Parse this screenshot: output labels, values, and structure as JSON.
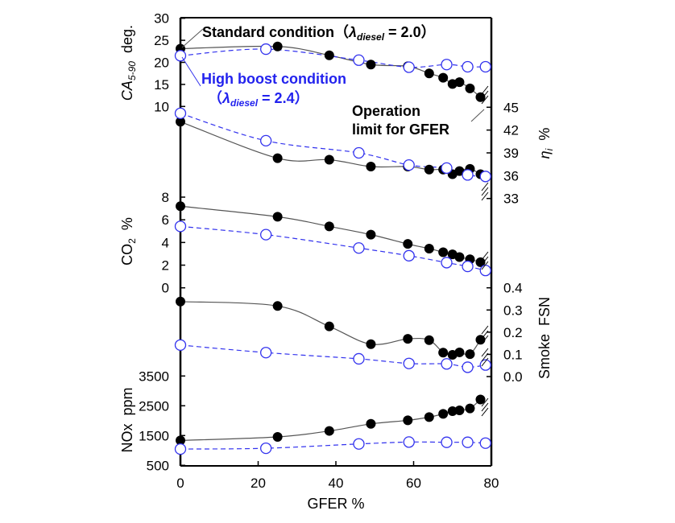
{
  "chart_data": {
    "type": "line",
    "xlabel": "GFER  %",
    "xlim": [
      0,
      80
    ],
    "xticks": [
      "0",
      "20",
      "40",
      "60",
      "80"
    ],
    "colors": {
      "standard": "#000000",
      "high_boost": "#3333ee",
      "standard_line": "#555555"
    },
    "legend": {
      "standard": {
        "text": "Standard condition（",
        "lambda": "λ",
        "sub": "diesel",
        "tail": " = 2.0）"
      },
      "high_boost": {
        "line1": "High boost condition",
        "open": "（",
        "lambda": "λ",
        "sub": "diesel",
        "tail": " = 2.4）"
      },
      "operation_limit": [
        "Operation",
        "limit for GFER"
      ]
    },
    "series_x": {
      "standard": [
        0,
        25,
        38.3,
        49,
        58.5,
        64,
        67.6,
        70,
        71.8,
        74.5,
        77.2
      ],
      "high_boost": [
        0,
        22,
        45.9,
        58.8,
        68.5,
        73.9,
        78.5
      ]
    },
    "panels": [
      {
        "id": "ca",
        "side": "left",
        "ylabel": "CA",
        "ylabel_sub": "5-90",
        "ylabel_unit": "deg.",
        "ylim": [
          10,
          30
        ],
        "yticks": [
          "30",
          "25",
          "20",
          "15",
          "10"
        ],
        "standard": [
          23.1,
          23.6,
          21.6,
          19.5,
          19.1,
          17.5,
          16.5,
          15.1,
          15.5,
          14.1,
          12.1
        ],
        "high_boost": [
          21.5,
          23.0,
          20.5,
          18.9,
          19.5,
          19.0,
          19.0
        ]
      },
      {
        "id": "eta",
        "side": "right",
        "ylabel": "η",
        "ylabel_sub": "i",
        "ylabel_unit": "%",
        "ylim": [
          33,
          45
        ],
        "yticks": [
          "45",
          "42",
          "39",
          "36",
          "33"
        ],
        "standard": [
          43.1,
          38.3,
          38.1,
          37.2,
          37.2,
          36.8,
          36.8,
          36.2,
          36.6,
          36.9,
          36.2
        ],
        "high_boost": [
          44.2,
          40.6,
          39.0,
          37.4,
          37.0,
          36.1,
          35.9
        ]
      },
      {
        "id": "co2",
        "side": "left",
        "ylabel": "CO",
        "ylabel_sub": "2",
        "ylabel_unit": "%",
        "ylim": [
          0,
          8
        ],
        "yticks": [
          "8",
          "6",
          "4",
          "2",
          "0"
        ],
        "standard": [
          7.2,
          6.27,
          5.42,
          4.69,
          3.87,
          3.46,
          3.14,
          2.95,
          2.71,
          2.52,
          2.26
        ],
        "high_boost": [
          5.42,
          4.69,
          3.51,
          2.83,
          2.22,
          1.89,
          1.53
        ]
      },
      {
        "id": "smoke",
        "side": "right",
        "ylabel": "Smoke",
        "ylabel_sub": "",
        "ylabel_unit": "FSN",
        "ylim": [
          0,
          0.4
        ],
        "yticks": [
          "0.4",
          "0.3",
          "0.2",
          "0.1",
          "0.0"
        ],
        "standard": [
          0.338,
          0.318,
          0.226,
          0.146,
          0.17,
          0.164,
          0.108,
          0.098,
          0.109,
          0.101,
          0.166
        ],
        "high_boost": [
          0.142,
          0.108,
          0.08,
          0.059,
          0.057,
          0.042,
          0.052
        ]
      },
      {
        "id": "nox",
        "side": "left",
        "ylabel": "NOx",
        "ylabel_sub": "",
        "ylabel_unit": "ppm",
        "ylim": [
          500,
          3500
        ],
        "yticks": [
          "3500",
          "2500",
          "1500",
          "500"
        ],
        "standard": [
          1335,
          1455,
          1655,
          1892,
          2010,
          2119,
          2228,
          2318,
          2346,
          2410,
          2711
        ],
        "high_boost": [
          1046,
          1073,
          1218,
          1281,
          1273,
          1273,
          1245
        ]
      }
    ]
  }
}
